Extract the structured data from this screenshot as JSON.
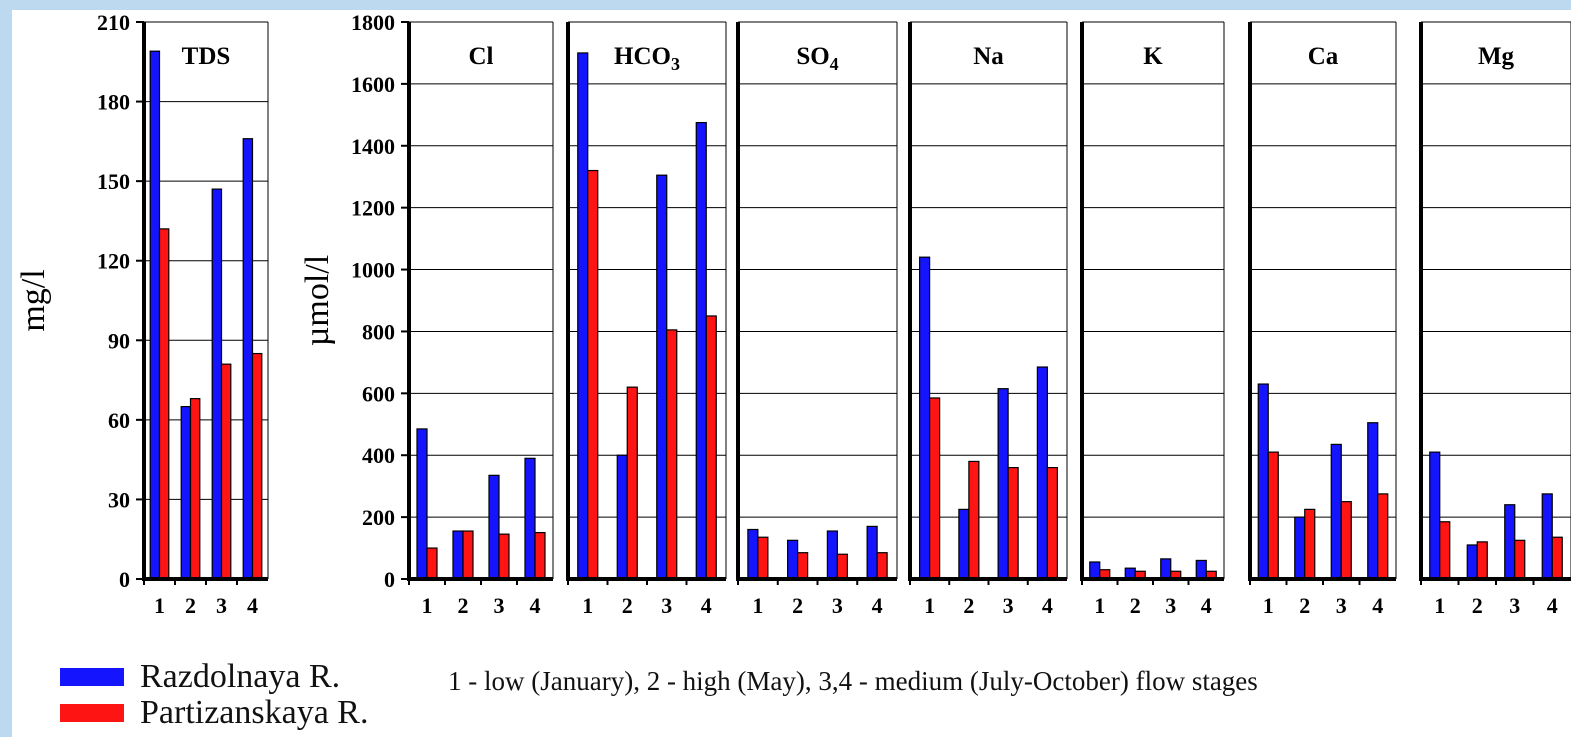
{
  "chart_data": [
    {
      "type": "bar",
      "title": "TDS",
      "ylabel": "mg/l",
      "ylim": [
        0,
        210
      ],
      "yticks": [
        0,
        30,
        60,
        90,
        120,
        150,
        180,
        210
      ],
      "categories": [
        "1",
        "2",
        "3",
        "4"
      ],
      "series": [
        {
          "name": "Razdolnaya R.",
          "values": [
            199,
            65,
            147,
            166
          ]
        },
        {
          "name": "Partizanskaya R.",
          "values": [
            132,
            68,
            81,
            85
          ]
        }
      ]
    },
    {
      "type": "bar",
      "title_main": "Cl",
      "title_sub": "",
      "ylabel": "µmol/l",
      "ylim": [
        0,
        1800
      ],
      "yticks": [
        0,
        200,
        400,
        600,
        800,
        1000,
        1200,
        1400,
        1600,
        1800
      ],
      "categories": [
        "1",
        "2",
        "3",
        "4"
      ],
      "series": [
        {
          "name": "Razdolnaya R.",
          "values": [
            485,
            155,
            335,
            390
          ]
        },
        {
          "name": "Partizanskaya R.",
          "values": [
            100,
            155,
            145,
            150
          ]
        }
      ]
    },
    {
      "type": "bar",
      "title_main": "HCO",
      "title_sub": "3",
      "ylim": [
        0,
        1800
      ],
      "categories": [
        "1",
        "2",
        "3",
        "4"
      ],
      "series": [
        {
          "name": "Razdolnaya R.",
          "values": [
            1700,
            400,
            1305,
            1475
          ]
        },
        {
          "name": "Partizanskaya R.",
          "values": [
            1320,
            620,
            805,
            850
          ]
        }
      ]
    },
    {
      "type": "bar",
      "title_main": "SO",
      "title_sub": "4",
      "ylim": [
        0,
        1800
      ],
      "categories": [
        "1",
        "2",
        "3",
        "4"
      ],
      "series": [
        {
          "name": "Razdolnaya R.",
          "values": [
            160,
            125,
            155,
            170
          ]
        },
        {
          "name": "Partizanskaya R.",
          "values": [
            135,
            85,
            80,
            85
          ]
        }
      ]
    },
    {
      "type": "bar",
      "title_main": "Na",
      "title_sub": "",
      "ylim": [
        0,
        1800
      ],
      "categories": [
        "1",
        "2",
        "3",
        "4"
      ],
      "series": [
        {
          "name": "Razdolnaya R.",
          "values": [
            1040,
            225,
            615,
            685
          ]
        },
        {
          "name": "Partizanskaya R.",
          "values": [
            585,
            380,
            360,
            360
          ]
        }
      ]
    },
    {
      "type": "bar",
      "title_main": "K",
      "title_sub": "",
      "ylim": [
        0,
        1800
      ],
      "categories": [
        "1",
        "2",
        "3",
        "4"
      ],
      "series": [
        {
          "name": "Razdolnaya R.",
          "values": [
            55,
            35,
            65,
            60
          ]
        },
        {
          "name": "Partizanskaya R.",
          "values": [
            30,
            25,
            25,
            25
          ]
        }
      ]
    },
    {
      "type": "bar",
      "title_main": "Ca",
      "title_sub": "",
      "ylim": [
        0,
        1800
      ],
      "categories": [
        "1",
        "2",
        "3",
        "4"
      ],
      "series": [
        {
          "name": "Razdolnaya R.",
          "values": [
            630,
            200,
            435,
            505
          ]
        },
        {
          "name": "Partizanskaya R.",
          "values": [
            410,
            225,
            250,
            275
          ]
        }
      ]
    },
    {
      "type": "bar",
      "title_main": "Mg",
      "title_sub": "",
      "ylim": [
        0,
        1800
      ],
      "categories": [
        "1",
        "2",
        "3",
        "4"
      ],
      "series": [
        {
          "name": "Razdolnaya R.",
          "values": [
            410,
            110,
            240,
            275
          ]
        },
        {
          "name": "Partizanskaya R.",
          "values": [
            185,
            120,
            125,
            135
          ]
        }
      ]
    }
  ],
  "legend": {
    "items": [
      {
        "label": "Razdolnaya R.",
        "color": "#1414ff"
      },
      {
        "label": "Partizanskaya R.",
        "color": "#ff1414"
      }
    ],
    "note": "1 - low (January), 2 - high (May), 3,4 - medium (July-October) flow stages"
  },
  "colors": {
    "background": "#bcd9ef",
    "series_1": "#1414ff",
    "series_2": "#ff1414"
  }
}
